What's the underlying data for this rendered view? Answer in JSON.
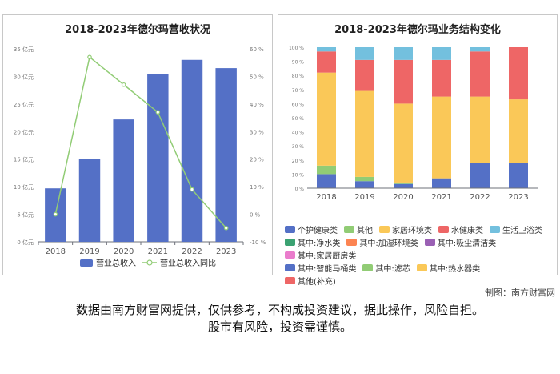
{
  "left_chart": {
    "title": "2018-2023年德尔玛营收状况",
    "legend_bar": "营业总收入",
    "legend_line": "营业总收入同比"
  },
  "right_chart": {
    "title": "2018-2023年德尔玛业务结构变化"
  },
  "credit": "制图：南方财富网",
  "disclaimer_line1": "数据由南方财富网提供，仅供参考，不构成投资建议，据此操作，风险自担。",
  "disclaimer_line2": "股市有风险，投资需谨慎。",
  "watermark": "南方财富网",
  "colors": {
    "bar": "#5470c6",
    "line": "#91cc75"
  },
  "chart_data": [
    {
      "type": "bar",
      "title": "2018-2023年德尔玛营收状况",
      "categories": [
        "2018",
        "2019",
        "2020",
        "2021",
        "2022",
        "2023"
      ],
      "y_left_ticks": [
        "0 亿元",
        "5 亿元",
        "10 亿元",
        "15 亿元",
        "20 亿元",
        "25 亿元",
        "30 亿元",
        "35 亿元"
      ],
      "y_right_ticks": [
        "-10 %",
        "0 %",
        "10 %",
        "20 %",
        "30 %",
        "40 %",
        "50 %",
        "60 %"
      ],
      "ylim_left": [
        0,
        35
      ],
      "ylim_right": [
        -10,
        60
      ],
      "series": [
        {
          "name": "营业总收入",
          "type": "bar",
          "axis": "left",
          "values": [
            9.7,
            15.1,
            22.2,
            30.4,
            33.0,
            31.5
          ]
        },
        {
          "name": "营业总收入同比",
          "type": "line",
          "axis": "right",
          "values": [
            0,
            57,
            47,
            37,
            9,
            -5
          ]
        }
      ],
      "legend": "bottom",
      "grid": false
    },
    {
      "type": "bar",
      "stacked": true,
      "title": "2018-2023年德尔玛业务结构变化",
      "categories": [
        "2018",
        "2019",
        "2020",
        "2021",
        "2022",
        "2023"
      ],
      "y_ticks": [
        "0 %",
        "10 %",
        "20 %",
        "30 %",
        "40 %",
        "50 %",
        "60 %",
        "70 %",
        "80 %",
        "90 %",
        "100 %"
      ],
      "ylim": [
        0,
        100
      ],
      "legend": "bottom",
      "grid": false,
      "series": [
        {
          "name": "个护健康类",
          "color": "#5470c6",
          "values": [
            10,
            5,
            3,
            7,
            18,
            18
          ]
        },
        {
          "name": "其他",
          "color": "#91cc75",
          "values": [
            6,
            3,
            1,
            0,
            0,
            0
          ]
        },
        {
          "name": "家居环境类",
          "color": "#fac858",
          "values": [
            66,
            61,
            56,
            58,
            47,
            45
          ]
        },
        {
          "name": "水健康类",
          "color": "#ee6666",
          "values": [
            15,
            22,
            31,
            26,
            32,
            37
          ]
        },
        {
          "name": "生活卫浴类",
          "color": "#73c0de",
          "values": [
            3,
            9,
            9,
            9,
            3,
            0
          ]
        },
        {
          "name": "其中:净水类",
          "color": "#3ba272",
          "values": [
            0,
            0,
            0,
            0,
            0,
            0
          ]
        },
        {
          "name": "其中:加湿环境类",
          "color": "#fc8452",
          "values": [
            0,
            0,
            0,
            0,
            0,
            0
          ]
        },
        {
          "name": "其中:吸尘清洁类",
          "color": "#9a60b4",
          "values": [
            0,
            0,
            0,
            0,
            0,
            0
          ]
        },
        {
          "name": "其中:家居厨房类",
          "color": "#ea7ccc",
          "values": [
            0,
            0,
            0,
            0,
            0,
            0
          ]
        },
        {
          "name": "其中:智能马桶类",
          "color": "#5470c6",
          "values": [
            0,
            0,
            0,
            0,
            0,
            0
          ]
        },
        {
          "name": "其中:滤芯",
          "color": "#91cc75",
          "values": [
            0,
            0,
            0,
            0,
            0,
            0
          ]
        },
        {
          "name": "其中:热水器类",
          "color": "#fac858",
          "values": [
            0,
            0,
            0,
            0,
            0,
            0
          ]
        },
        {
          "name": "其他(补充)",
          "color": "#ee6666",
          "values": [
            0,
            0,
            0,
            0,
            0,
            0
          ]
        }
      ]
    }
  ]
}
